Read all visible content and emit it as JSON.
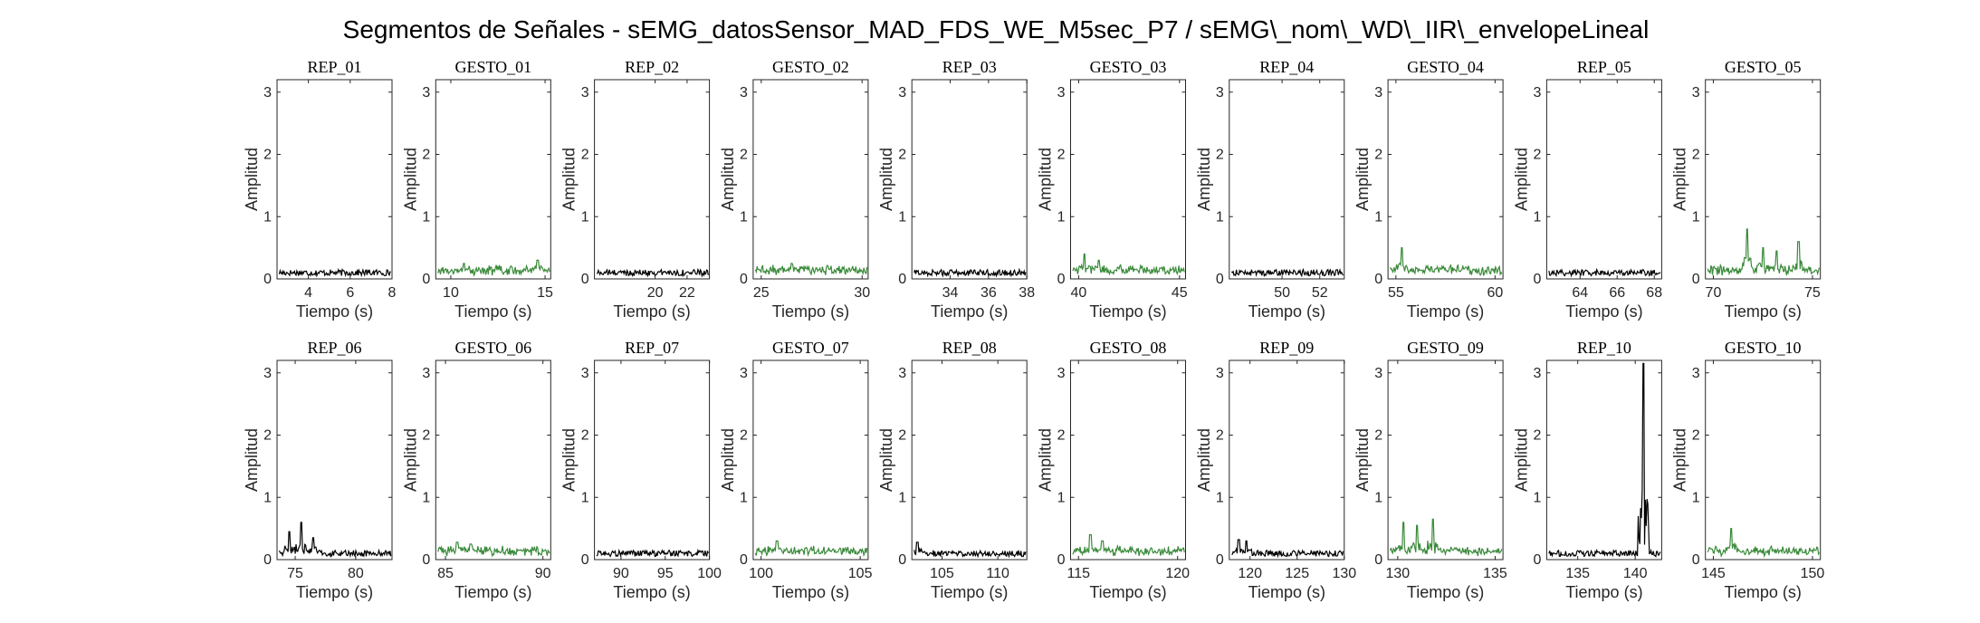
{
  "title": "Segmentos de Señales - sEMG_datosSensor_MAD_FDS_WE_M5sec_P7 / sEMG\\_nom\\_WD\\_IIR\\_envelopeLineal",
  "colors": {
    "rep": "#000000",
    "gesto": "#3a8a3a",
    "axis": "#262626"
  },
  "chart_data": [
    {
      "type": "line",
      "title": "REP_01",
      "kind": "rep",
      "xlabel": "Tiempo (s)",
      "ylabel": "Amplitud",
      "xlim": [
        2.5,
        8
      ],
      "ylim": [
        0,
        3.2
      ],
      "xticks": [
        4,
        6,
        8
      ],
      "yticks": [
        0,
        1,
        2,
        3
      ],
      "spikes": []
    },
    {
      "type": "line",
      "title": "GESTO_01",
      "kind": "gesto",
      "xlabel": "Tiempo (s)",
      "ylabel": "Amplitud",
      "xlim": [
        9.2,
        15.3
      ],
      "ylim": [
        0,
        3.2
      ],
      "xticks": [
        10,
        15
      ],
      "yticks": [
        0,
        1,
        2,
        3
      ],
      "spikes": [
        {
          "x": 14.6,
          "y": 0.3
        },
        {
          "x": 10.7,
          "y": 0.25
        }
      ]
    },
    {
      "type": "line",
      "title": "REP_02",
      "kind": "rep",
      "xlabel": "Tiempo (s)",
      "ylabel": "Amplitud",
      "xlim": [
        16.2,
        23.4
      ],
      "ylim": [
        0,
        3.2
      ],
      "xticks": [
        20,
        22
      ],
      "yticks": [
        0,
        1,
        2,
        3
      ],
      "spikes": []
    },
    {
      "type": "line",
      "title": "GESTO_02",
      "kind": "gesto",
      "xlabel": "Tiempo (s)",
      "ylabel": "Amplitud",
      "xlim": [
        24.6,
        30.3
      ],
      "ylim": [
        0,
        3.2
      ],
      "xticks": [
        25,
        30
      ],
      "yticks": [
        0,
        1,
        2,
        3
      ],
      "spikes": [
        {
          "x": 26.5,
          "y": 0.25
        }
      ]
    },
    {
      "type": "line",
      "title": "REP_03",
      "kind": "rep",
      "xlabel": "Tiempo (s)",
      "ylabel": "Amplitud",
      "xlim": [
        32,
        38
      ],
      "ylim": [
        0,
        3.2
      ],
      "xticks": [
        34,
        36,
        38
      ],
      "yticks": [
        0,
        1,
        2,
        3
      ],
      "spikes": []
    },
    {
      "type": "line",
      "title": "GESTO_03",
      "kind": "gesto",
      "xlabel": "Tiempo (s)",
      "ylabel": "Amplitud",
      "xlim": [
        39.6,
        45.3
      ],
      "ylim": [
        0,
        3.2
      ],
      "xticks": [
        40,
        45
      ],
      "yticks": [
        0,
        1,
        2,
        3
      ],
      "spikes": [
        {
          "x": 40.3,
          "y": 0.4
        },
        {
          "x": 41,
          "y": 0.3
        }
      ]
    },
    {
      "type": "line",
      "title": "REP_04",
      "kind": "rep",
      "xlabel": "Tiempo (s)",
      "ylabel": "Amplitud",
      "xlim": [
        47.2,
        53.3
      ],
      "ylim": [
        0,
        3.2
      ],
      "xticks": [
        50,
        52
      ],
      "yticks": [
        0,
        1,
        2,
        3
      ],
      "spikes": []
    },
    {
      "type": "line",
      "title": "GESTO_04",
      "kind": "gesto",
      "xlabel": "Tiempo (s)",
      "ylabel": "Amplitud",
      "xlim": [
        54.6,
        60.4
      ],
      "ylim": [
        0,
        3.2
      ],
      "xticks": [
        55,
        60
      ],
      "yticks": [
        0,
        1,
        2,
        3
      ],
      "spikes": [
        {
          "x": 55.3,
          "y": 0.5
        }
      ]
    },
    {
      "type": "line",
      "title": "REP_05",
      "kind": "rep",
      "xlabel": "Tiempo (s)",
      "ylabel": "Amplitud",
      "xlim": [
        62.2,
        68.4
      ],
      "ylim": [
        0,
        3.2
      ],
      "xticks": [
        64,
        66,
        68
      ],
      "yticks": [
        0,
        1,
        2,
        3
      ],
      "spikes": []
    },
    {
      "type": "line",
      "title": "GESTO_05",
      "kind": "gesto",
      "xlabel": "Tiempo (s)",
      "ylabel": "Amplitud",
      "xlim": [
        69.6,
        75.4
      ],
      "ylim": [
        0,
        3.2
      ],
      "xticks": [
        70,
        75
      ],
      "yticks": [
        0,
        1,
        2,
        3
      ],
      "spikes": [
        {
          "x": 71.7,
          "y": 0.8
        },
        {
          "x": 74.3,
          "y": 0.6
        },
        {
          "x": 72.5,
          "y": 0.5
        },
        {
          "x": 73.2,
          "y": 0.45
        }
      ]
    },
    {
      "type": "line",
      "title": "REP_06",
      "kind": "rep",
      "xlabel": "Tiempo (s)",
      "ylabel": "Amplitud",
      "xlim": [
        73.5,
        83
      ],
      "ylim": [
        0,
        3.2
      ],
      "xticks": [
        75,
        80
      ],
      "yticks": [
        0,
        1,
        2,
        3
      ],
      "spikes": [
        {
          "x": 75.5,
          "y": 0.6
        },
        {
          "x": 74.5,
          "y": 0.45
        },
        {
          "x": 76.5,
          "y": 0.35
        }
      ]
    },
    {
      "type": "line",
      "title": "GESTO_06",
      "kind": "gesto",
      "xlabel": "Tiempo (s)",
      "ylabel": "Amplitud",
      "xlim": [
        84.5,
        90.4
      ],
      "ylim": [
        0,
        3.2
      ],
      "xticks": [
        85,
        90
      ],
      "yticks": [
        0,
        1,
        2,
        3
      ],
      "spikes": [
        {
          "x": 85.6,
          "y": 0.28
        },
        {
          "x": 86.3,
          "y": 0.25
        }
      ]
    },
    {
      "type": "line",
      "title": "REP_07",
      "kind": "rep",
      "xlabel": "Tiempo (s)",
      "ylabel": "Amplitud",
      "xlim": [
        87,
        100
      ],
      "ylim": [
        0,
        3.2
      ],
      "xticks": [
        90,
        95,
        100
      ],
      "yticks": [
        0,
        1,
        2,
        3
      ],
      "spikes": []
    },
    {
      "type": "line",
      "title": "GESTO_07",
      "kind": "gesto",
      "xlabel": "Tiempo (s)",
      "ylabel": "Amplitud",
      "xlim": [
        99.6,
        105.4
      ],
      "ylim": [
        0,
        3.2
      ],
      "xticks": [
        100,
        105
      ],
      "yticks": [
        0,
        1,
        2,
        3
      ],
      "spikes": [
        {
          "x": 100.8,
          "y": 0.3
        }
      ]
    },
    {
      "type": "line",
      "title": "REP_08",
      "kind": "rep",
      "xlabel": "Tiempo (s)",
      "ylabel": "Amplitud",
      "xlim": [
        102.3,
        112.6
      ],
      "ylim": [
        0,
        3.2
      ],
      "xticks": [
        105,
        110
      ],
      "yticks": [
        0,
        1,
        2,
        3
      ],
      "spikes": [
        {
          "x": 102.8,
          "y": 0.28
        }
      ]
    },
    {
      "type": "line",
      "title": "GESTO_08",
      "kind": "gesto",
      "xlabel": "Tiempo (s)",
      "ylabel": "Amplitud",
      "xlim": [
        114.6,
        120.4
      ],
      "ylim": [
        0,
        3.2
      ],
      "xticks": [
        115,
        120
      ],
      "yticks": [
        0,
        1,
        2,
        3
      ],
      "spikes": [
        {
          "x": 115.6,
          "y": 0.4
        },
        {
          "x": 116.2,
          "y": 0.3
        }
      ]
    },
    {
      "type": "line",
      "title": "REP_09",
      "kind": "rep",
      "xlabel": "Tiempo (s)",
      "ylabel": "Amplitud",
      "xlim": [
        117.8,
        130
      ],
      "ylim": [
        0,
        3.2
      ],
      "xticks": [
        120,
        125,
        130
      ],
      "yticks": [
        0,
        1,
        2,
        3
      ],
      "spikes": [
        {
          "x": 118.8,
          "y": 0.32
        },
        {
          "x": 119.6,
          "y": 0.3
        }
      ]
    },
    {
      "type": "line",
      "title": "GESTO_09",
      "kind": "gesto",
      "xlabel": "Tiempo (s)",
      "ylabel": "Amplitud",
      "xlim": [
        129.5,
        135.4
      ],
      "ylim": [
        0,
        3.2
      ],
      "xticks": [
        130,
        135
      ],
      "yticks": [
        0,
        1,
        2,
        3
      ],
      "spikes": [
        {
          "x": 130.3,
          "y": 0.6
        },
        {
          "x": 131.8,
          "y": 0.65
        },
        {
          "x": 131,
          "y": 0.55
        }
      ]
    },
    {
      "type": "line",
      "title": "REP_10",
      "kind": "rep",
      "xlabel": "Tiempo (s)",
      "ylabel": "Amplitud",
      "xlim": [
        132.3,
        142.3
      ],
      "ylim": [
        0,
        3.2
      ],
      "xticks": [
        135,
        140
      ],
      "yticks": [
        0,
        1,
        2,
        3
      ],
      "spikes": [
        {
          "x": 140.7,
          "y": 3.15
        }
      ]
    },
    {
      "type": "line",
      "title": "GESTO_10",
      "kind": "gesto",
      "xlabel": "Tiempo (s)",
      "ylabel": "Amplitud",
      "xlim": [
        144.6,
        150.4
      ],
      "ylim": [
        0,
        3.2
      ],
      "xticks": [
        145,
        150
      ],
      "yticks": [
        0,
        1,
        2,
        3
      ],
      "spikes": [
        {
          "x": 145.9,
          "y": 0.5
        }
      ]
    }
  ]
}
